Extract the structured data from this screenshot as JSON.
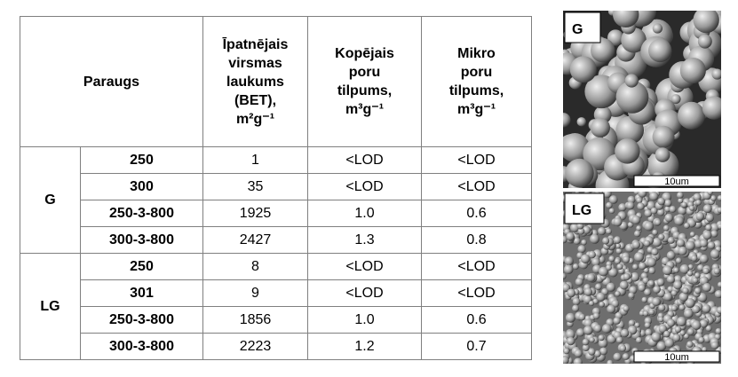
{
  "table": {
    "header": {
      "sample": "Paraugs",
      "surface": [
        "Īpatnējais",
        "virsmas",
        "laukums",
        "(BET),",
        "m²g⁻¹"
      ],
      "total": [
        "Kopējais",
        "poru",
        "tilpums,",
        "m³g⁻¹"
      ],
      "micro": [
        "Mikro",
        "poru",
        "tilpums,",
        "m³g⁻¹"
      ]
    },
    "groups": [
      {
        "label": "G",
        "rows": [
          [
            "250",
            "1",
            "<LOD",
            "<LOD"
          ],
          [
            "300",
            "35",
            "<LOD",
            "<LOD"
          ],
          [
            "250-3-800",
            "1925",
            "1.0",
            "0.6"
          ],
          [
            "300-3-800",
            "2427",
            "1.3",
            "0.8"
          ]
        ]
      },
      {
        "label": "LG",
        "rows": [
          [
            "250",
            "8",
            "<LOD",
            "<LOD"
          ],
          [
            "301",
            "9",
            "<LOD",
            "<LOD"
          ],
          [
            "250-3-800",
            "1856",
            "1.0",
            "0.6"
          ],
          [
            "300-3-800",
            "2223",
            "1.2",
            "0.7"
          ]
        ]
      }
    ]
  },
  "images": [
    {
      "label": "G",
      "scale": "10um"
    },
    {
      "label": "LG",
      "scale": "10um"
    }
  ]
}
